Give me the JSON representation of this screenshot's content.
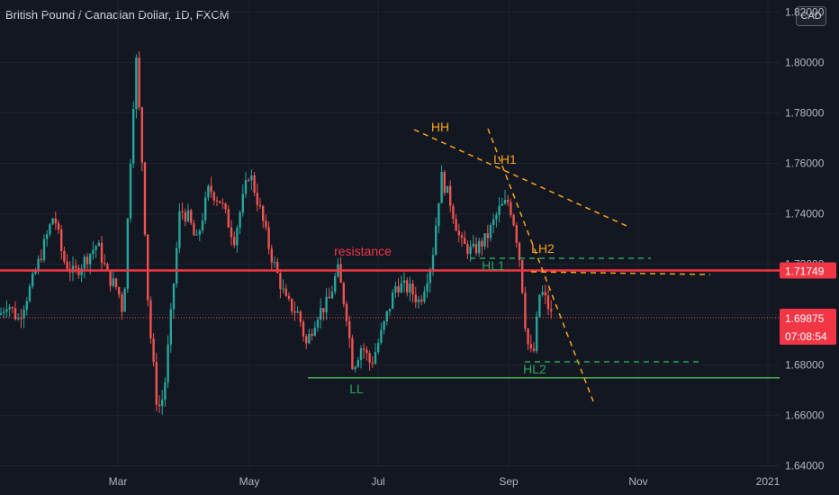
{
  "header": {
    "title": "British Pound / Canadian Dollar, 1D, FXCM",
    "currency_button": "CAD"
  },
  "colors": {
    "background": "#131722",
    "up": "#26a69a",
    "down": "#ef5350",
    "resistance": "#f23645",
    "support": "#4caf50",
    "trend": "#f7a21b",
    "dashed_green": "#26a65b",
    "price_tag": "#f23645",
    "axis_text": "#b2b5be",
    "grid": "#1e222d"
  },
  "chart_data": {
    "type": "candlestick",
    "title": "British Pound / Canadian Dollar, 1D, FXCM",
    "x_ticks": [
      "Mar",
      "May",
      "Jul",
      "Sep",
      "Nov",
      "2021"
    ],
    "y_ticks": [
      "1.64000",
      "1.66000",
      "1.68000",
      "1.70000",
      "1.72000",
      "1.74000",
      "1.76000",
      "1.78000",
      "1.80000",
      "1.82000"
    ],
    "ylim": [
      1.64,
      1.82
    ],
    "price_labels": {
      "resistance": "1.71749",
      "last": "1.69875",
      "countdown": "07:08:54"
    },
    "levels": {
      "resistance": 1.71749,
      "support": 1.6749,
      "last": 1.69875
    },
    "annotations": [
      "HH",
      "LH1",
      "LH2",
      "HL1",
      "HL2",
      "LL",
      "resistance"
    ],
    "approx_path": [
      [
        1.7,
        0
      ],
      [
        1.705,
        8
      ],
      [
        1.698,
        20
      ],
      [
        1.712,
        35
      ],
      [
        1.74,
        60
      ],
      [
        1.722,
        70
      ],
      [
        1.716,
        82
      ],
      [
        1.722,
        95
      ],
      [
        1.728,
        108
      ],
      [
        1.715,
        120
      ],
      [
        1.71,
        131
      ],
      [
        1.7,
        137
      ],
      [
        1.77,
        146
      ],
      [
        1.803,
        151
      ],
      [
        1.76,
        158
      ],
      [
        1.7,
        165
      ],
      [
        1.662,
        175
      ],
      [
        1.668,
        182
      ],
      [
        1.7,
        190
      ],
      [
        1.742,
        200
      ],
      [
        1.738,
        210
      ],
      [
        1.728,
        218
      ],
      [
        1.75,
        232
      ],
      [
        1.745,
        245
      ],
      [
        1.73,
        260
      ],
      [
        1.757,
        277
      ],
      [
        1.74,
        290
      ],
      [
        1.725,
        300
      ],
      [
        1.705,
        318
      ],
      [
        1.7,
        332
      ],
      [
        1.688,
        340
      ],
      [
        1.7,
        352
      ],
      [
        1.705,
        365
      ],
      [
        1.718,
        375
      ],
      [
        1.7,
        385
      ],
      [
        1.679,
        392
      ],
      [
        1.688,
        402
      ],
      [
        1.68,
        412
      ],
      [
        1.694,
        425
      ],
      [
        1.712,
        440
      ],
      [
        1.71,
        455
      ],
      [
        1.705,
        466
      ],
      [
        1.722,
        480
      ],
      [
        1.755,
        490
      ],
      [
        1.745,
        500
      ],
      [
        1.728,
        512
      ],
      [
        1.725,
        525
      ],
      [
        1.73,
        540
      ],
      [
        1.742,
        555
      ],
      [
        1.745,
        565
      ],
      [
        1.735,
        572
      ],
      [
        1.72,
        578
      ],
      [
        1.69,
        585
      ],
      [
        1.682,
        592
      ],
      [
        1.71,
        600
      ],
      [
        1.705,
        607
      ],
      [
        1.698,
        614
      ]
    ]
  }
}
